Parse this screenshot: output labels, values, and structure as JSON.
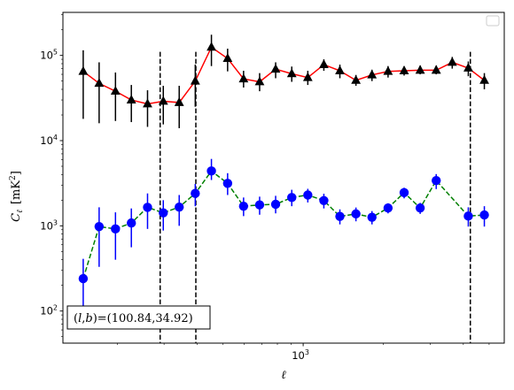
{
  "chart_data": {
    "type": "scatter",
    "title": "",
    "xlabel": "ℓ",
    "ylabel_main": "C",
    "ylabel_sub": "ℓ",
    "ylabel_unit_open": "[mK",
    "ylabel_unit_sup": "2",
    "ylabel_unit_close": "]",
    "xscale": "log",
    "yscale": "log",
    "xlim": [
      125,
      5700
    ],
    "ylim": [
      42,
      320000
    ],
    "x_major_ticks": [
      {
        "value": 1000,
        "base": "10",
        "exp": "3"
      }
    ],
    "y_major_ticks": [
      {
        "value": 100,
        "base": "10",
        "exp": "2"
      },
      {
        "value": 1000,
        "base": "10",
        "exp": "3"
      },
      {
        "value": 10000,
        "base": "10",
        "exp": "4"
      },
      {
        "value": 100000,
        "base": "10",
        "exp": "5"
      }
    ],
    "grid": false,
    "legend": {
      "position": "top-right",
      "entries": []
    },
    "vlines": [
      290,
      395,
      4250
    ],
    "annotation": {
      "prefix": "(",
      "l": "l",
      "comma": ",",
      "b": "b",
      "suffix": ")=(100.84,34.92)",
      "position": "bottom-left"
    },
    "x": [
      149,
      171,
      197,
      226,
      260,
      298,
      342,
      393,
      452,
      520,
      597,
      686,
      788,
      906,
      1041,
      1196,
      1374,
      1579,
      1814,
      2085,
      2396,
      2753,
      3163,
      3634,
      4176,
      4798,
      5200
    ],
    "series": [
      {
        "color": "#000000",
        "line": "#ff0000",
        "linestyle": "solid",
        "marker": "triangle",
        "values": [
          65000,
          47000,
          38000,
          30000,
          27000,
          29000,
          28000,
          50000,
          125000,
          92000,
          53000,
          49000,
          69000,
          61000,
          55000,
          78000,
          66000,
          51000,
          59000,
          65000,
          66000,
          67000,
          67000,
          83000,
          71000,
          51000,
          null
        ],
        "err_low": [
          18000,
          16000,
          17000,
          16500,
          14500,
          15500,
          14000,
          25000,
          75000,
          65000,
          42000,
          38000,
          54000,
          49000,
          45000,
          66000,
          54000,
          44000,
          50000,
          55000,
          58000,
          60000,
          60000,
          70000,
          57000,
          40000,
          null
        ],
        "err_high": [
          115000,
          83000,
          63000,
          45000,
          39000,
          44000,
          44000,
          78000,
          175000,
          120000,
          66000,
          62000,
          83000,
          74000,
          66000,
          90000,
          78000,
          59000,
          68000,
          75000,
          74000,
          76000,
          76000,
          96000,
          85000,
          62000,
          null
        ]
      },
      {
        "color": "#0000ff",
        "line": "#008000",
        "linestyle": "dashed",
        "marker": "circle",
        "values": [
          240,
          980,
          920,
          1080,
          1650,
          1420,
          1660,
          2400,
          4400,
          3150,
          1700,
          1760,
          1790,
          2150,
          2300,
          1980,
          1290,
          1380,
          1260,
          1620,
          2450,
          1620,
          3400,
          null,
          1300,
          1340,
          null
        ],
        "err_low": [
          90,
          330,
          400,
          560,
          920,
          880,
          1000,
          1700,
          3450,
          2300,
          1300,
          1350,
          1400,
          1700,
          1880,
          1600,
          1040,
          1130,
          1040,
          1400,
          2100,
          1380,
          2700,
          null,
          980,
          980,
          null
        ],
        "err_high": [
          410,
          1650,
          1440,
          1600,
          2400,
          2000,
          2300,
          3100,
          6100,
          4150,
          2150,
          2200,
          2250,
          2650,
          2720,
          2380,
          1560,
          1640,
          1490,
          1840,
          2800,
          1860,
          4050,
          null,
          1650,
          1700,
          null
        ]
      }
    ]
  }
}
